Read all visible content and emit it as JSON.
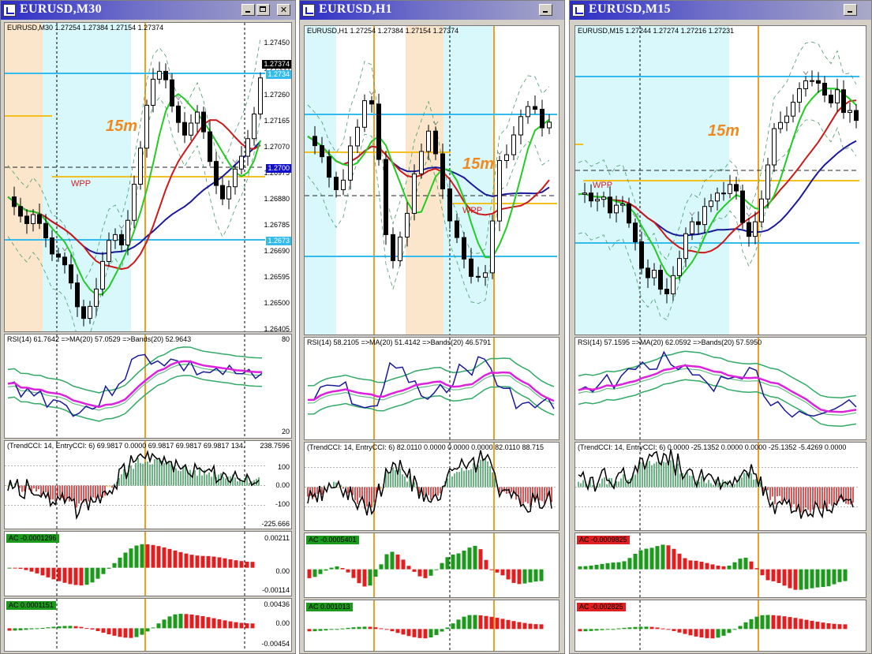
{
  "windows": [
    {
      "title": "EURUSD,M30",
      "buttons": {
        "minimize": "_",
        "maximize": "□",
        "close": "✕"
      },
      "price": {
        "label": "EURUSD,M30  1.27254 1.27384 1.27154 1.27374",
        "axis": [
          "1.27450",
          "1.27355",
          "1.27260",
          "1.27165",
          "1.27070",
          "1.26975",
          "1.26880",
          "1.26785",
          "1.26690",
          "1.26595",
          "1.26500",
          "1.26405"
        ],
        "tags": {
          "current": "1.27374",
          "upper_line": "1.2734",
          "mid_line": "1.2700",
          "lower_line": "1.2673"
        },
        "annotation": "15m",
        "pivot_label": "WPP"
      },
      "rsi": {
        "label": "RSI(14) 61.7642  =>MA(20) 57.0529  =>Bands(20) 52.9643",
        "axis_top": "80",
        "axis_bottom": "20"
      },
      "cci": {
        "label": "(TrendCCI: 14, EntryCCI: 6)  69.9817 0.0000 69.9817 69.9817 69.9817 134.",
        "axis": [
          "238.7596",
          "100",
          "0.00",
          "-100",
          "-225.666"
        ]
      },
      "ac1": {
        "label": "AC -0.0001296",
        "axis": [
          "0.00211",
          "0.00",
          "-0.00114"
        ],
        "label_color": "green"
      },
      "ac2": {
        "label": "AC 0.0001151",
        "axis": [
          "0.00436",
          "0.00",
          "-0.00454"
        ],
        "label_color": "green"
      }
    },
    {
      "title": "EURUSD,H1",
      "buttons": {
        "minimize": "_",
        "maximize": "□",
        "close": "✕"
      },
      "price": {
        "label": "EURUSD,H1  1.27254 1.27384 1.27154 1.27374",
        "axis": [],
        "tags": {},
        "annotation": "15m",
        "pivot_label": "WPP"
      },
      "rsi": {
        "label": "RSI(14) 58.2105  =>MA(20) 51.4142  =>Bands(20) 46.5791",
        "axis_top": "",
        "axis_bottom": ""
      },
      "cci": {
        "label": "(TrendCCI: 14, EntryCCI: 6)  82.0110 0.0000 0.0000 0.0000 82.0110 88.715",
        "axis": []
      },
      "ac1": {
        "label": "AC -0.0005401",
        "axis": [],
        "label_color": "green"
      },
      "ac2": {
        "label": "AC 0.001013",
        "axis": [],
        "label_color": "green"
      }
    },
    {
      "title": "EURUSD,M15",
      "buttons": {
        "minimize": "_",
        "maximize": "□",
        "close": "✕"
      },
      "price": {
        "label": "EURUSD,M15  1.27244 1.27274 1.27216 1.27231",
        "axis": [],
        "tags": {},
        "annotation": "15m",
        "pivot_label": "WPP"
      },
      "rsi": {
        "label": "RSI(14) 57.1595  =>MA(20) 62.0592  =>Bands(20) 57.5950",
        "axis_top": "",
        "axis_bottom": ""
      },
      "cci": {
        "label": "(TrendCCI: 14, EntryCCI: 6)  0.0000 -25.1352 0.0000 0.0000 -25.1352 -5.4269 0.0000",
        "axis": []
      },
      "ac1": {
        "label": "AC -0.0009825",
        "axis": [],
        "label_color": "red"
      },
      "ac2": {
        "label": "AC -0.002825",
        "axis": [],
        "label_color": "red"
      }
    }
  ],
  "colors": {
    "bull_bar": "#1b9a1b",
    "bear_bar": "#e02020",
    "cyan_zone": "#d8f8fc",
    "orange_zone": "#fbe6cc",
    "level_line": "#33bbee",
    "pivot_line": "#f2c020",
    "session_line": "#f0a020",
    "ma_slow": "#1a1a9a",
    "ma_mid": "#cc1a1a",
    "ma_fast": "#22cc22",
    "rsi_line": "#1a1a9a",
    "rsi_ma": "#dd22dd",
    "rsi_bands": "#33aa66"
  },
  "chart_data": [
    {
      "type": "candlestick",
      "symbol": "EURUSD",
      "timeframe": "M30",
      "ohlc_last": {
        "open": 1.27254,
        "high": 1.27384,
        "low": 1.27154,
        "close": 1.27374
      },
      "ylim": [
        1.264,
        1.2755
      ],
      "close_path": [
        1.269,
        1.2686,
        1.2682,
        1.2679,
        1.2684,
        1.2678,
        1.2672,
        1.2665,
        1.2667,
        1.266,
        1.2652,
        1.264,
        1.2645,
        1.265,
        1.2662,
        1.2672,
        1.2676,
        1.267,
        1.268,
        1.2695,
        1.271,
        1.2728,
        1.2738,
        1.274,
        1.2735,
        1.2722,
        1.2718,
        1.2712,
        1.2725,
        1.2722,
        1.2708,
        1.2698,
        1.2688,
        1.2692,
        1.27,
        1.2705,
        1.2712,
        1.2722,
        1.2737
      ]
    },
    {
      "type": "candlestick",
      "symbol": "EURUSD",
      "timeframe": "H1",
      "ohlc_last": {
        "open": 1.27254,
        "high": 1.27384,
        "low": 1.27154,
        "close": 1.27374
      }
    },
    {
      "type": "candlestick",
      "symbol": "EURUSD",
      "timeframe": "M15",
      "ohlc_last": {
        "open": 1.27244,
        "high": 1.27274,
        "low": 1.27216,
        "close": 1.27231
      }
    }
  ]
}
